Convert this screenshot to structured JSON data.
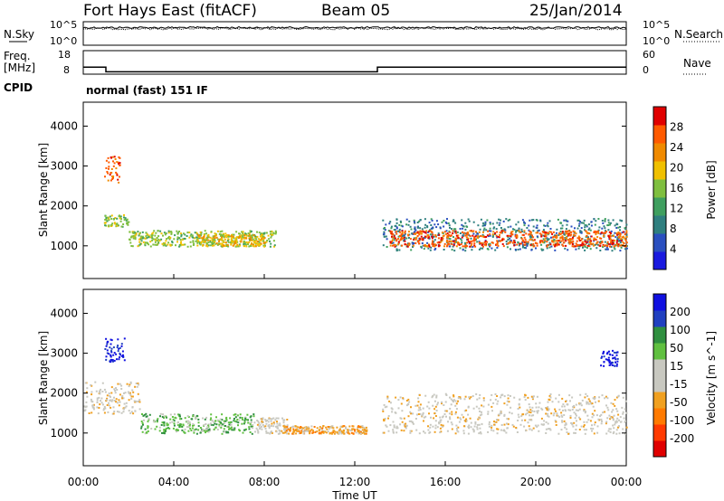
{
  "header": {
    "station": "Fort Hays East (fitACF)",
    "beam": "Beam 05",
    "date": "25/Jan/2014"
  },
  "noise_panel": {
    "left_label": "N.Sky",
    "right_label": "N.Search",
    "left_ticks": [
      "10^5",
      "10^0"
    ],
    "right_ticks": [
      "10^5",
      "10^0"
    ]
  },
  "freq_panel": {
    "left_label_1": "Freq.",
    "left_label_2": "[MHz]",
    "left_ticks": [
      "18",
      "8"
    ],
    "right_label": "Nave",
    "right_ticks": [
      "60",
      "0"
    ],
    "cpid_label": "CPID",
    "cpid_text": "normal (fast) 151 IF"
  },
  "colors": {
    "power_scale": [
      "#1a1adf",
      "#2a4fbf",
      "#2f7f7f",
      "#3f9f5f",
      "#7fbf3f",
      "#f0c000",
      "#f08a00",
      "#ff5a00",
      "#e00000"
    ],
    "velocity_scale": [
      "#e00000",
      "#ff3a00",
      "#ff7a00",
      "#f0a020",
      "#c8c8c0",
      "#c8c8c0",
      "#60c040",
      "#2f8f3f",
      "#2040c0",
      "#1010e0"
    ],
    "ground_scatter": "#c8c8c0"
  },
  "chart_data": [
    {
      "type": "line",
      "name": "noise",
      "x": [
        "00:00",
        "24:00"
      ],
      "ylim_labels": [
        "10^0",
        "10^5"
      ],
      "series": [
        {
          "name": "N.Sky",
          "values": [
            0.75,
            0.75
          ]
        },
        {
          "name": "N.Search",
          "values": [
            0.7,
            0.7
          ]
        }
      ]
    },
    {
      "type": "line",
      "name": "frequency",
      "x_hours": [
        0,
        1.0,
        1.0,
        13.0,
        13.0,
        24.0
      ],
      "series": [
        {
          "name": "Freq. [MHz]",
          "values": [
            11,
            11,
            9,
            9,
            11,
            11
          ]
        },
        {
          "name": "Nave",
          "values": [
            8,
            8,
            8,
            8,
            8,
            8
          ]
        }
      ],
      "ylim": [
        8,
        18
      ]
    },
    {
      "type": "heatmap",
      "name": "power",
      "xlabel": "",
      "ylabel": "Slant Range [km]",
      "y_ticks": [
        1000,
        2000,
        3000,
        4000
      ],
      "ylim": [
        180,
        4600
      ],
      "x_ticks": [
        "00:00",
        "04:00",
        "08:00",
        "12:00",
        "16:00",
        "20:00",
        "00:00"
      ],
      "colorbar_label": "Power [dB]",
      "colorbar_ticks": [
        "4",
        "8",
        "12",
        "16",
        "20",
        "24",
        "28"
      ],
      "regions": [
        {
          "t": [
            0.9,
            1.6
          ],
          "r": [
            2600,
            3300
          ],
          "level": 7
        },
        {
          "t": [
            0.9,
            2.0
          ],
          "r": [
            1500,
            1800
          ],
          "level": 4
        },
        {
          "t": [
            2.0,
            8.5
          ],
          "r": [
            1000,
            1400
          ],
          "level": 4
        },
        {
          "t": [
            5.0,
            8.0
          ],
          "r": [
            1000,
            1300
          ],
          "level": 5
        },
        {
          "t": [
            13.2,
            24.0
          ],
          "r": [
            900,
            1700
          ],
          "level": 2
        },
        {
          "t": [
            13.5,
            24.0
          ],
          "r": [
            1000,
            1400
          ],
          "level": 7
        }
      ]
    },
    {
      "type": "heatmap",
      "name": "velocity",
      "xlabel": "Time UT",
      "ylabel": "Slant Range [km]",
      "y_ticks": [
        1000,
        2000,
        3000,
        4000
      ],
      "ylim": [
        180,
        4600
      ],
      "x_ticks": [
        "00:00",
        "04:00",
        "08:00",
        "12:00",
        "16:00",
        "20:00",
        "00:00"
      ],
      "colorbar_label": "Velocity [m s^-1]",
      "colorbar_ticks": [
        "200",
        "100",
        "50",
        "15",
        "-15",
        "-50",
        "-100",
        "-200"
      ],
      "regions": [
        {
          "t": [
            0.9,
            1.8
          ],
          "r": [
            2800,
            3400
          ],
          "level": 9
        },
        {
          "t": [
            0.0,
            2.5
          ],
          "r": [
            1500,
            2300
          ],
          "level": 4
        },
        {
          "t": [
            2.5,
            7.5
          ],
          "r": [
            1000,
            1500
          ],
          "level": 6
        },
        {
          "t": [
            7.5,
            9.0
          ],
          "r": [
            1000,
            1400
          ],
          "level": 4
        },
        {
          "t": [
            8.8,
            12.5
          ],
          "r": [
            1000,
            1200
          ],
          "level": 3
        },
        {
          "t": [
            13.2,
            24.0
          ],
          "r": [
            1000,
            2000
          ],
          "level": 4
        },
        {
          "t": [
            22.8,
            23.6
          ],
          "r": [
            2700,
            3100
          ],
          "level": 9
        }
      ]
    }
  ]
}
